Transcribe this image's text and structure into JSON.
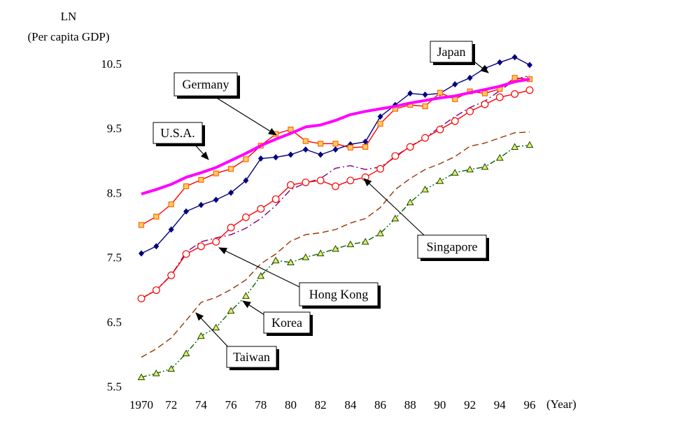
{
  "chart_data": {
    "type": "line",
    "ylabel_line1": "LN",
    "ylabel_line2": "(Per capita GDP)",
    "xlabel": "(Year)",
    "ylim": [
      5.5,
      11.0
    ],
    "yticks": [
      5.5,
      6.5,
      7.5,
      8.5,
      9.5,
      10.5
    ],
    "ytick_labels": [
      "5.5",
      "6.5",
      "7.5",
      "8.5",
      "9.5",
      "10.5"
    ],
    "xlim": [
      1970,
      1996
    ],
    "xticks": [
      1970,
      1972,
      1974,
      1976,
      1978,
      1980,
      1982,
      1984,
      1986,
      1988,
      1990,
      1992,
      1994,
      1996
    ],
    "xtick_labels": [
      "1970",
      "72",
      "74",
      "76",
      "78",
      "80",
      "82",
      "84",
      "86",
      "88",
      "90",
      "92",
      "94",
      "96"
    ],
    "x": [
      1970,
      1971,
      1972,
      1973,
      1974,
      1975,
      1976,
      1977,
      1978,
      1979,
      1980,
      1981,
      1982,
      1983,
      1984,
      1985,
      1986,
      1987,
      1988,
      1989,
      1990,
      1991,
      1992,
      1993,
      1994,
      1995,
      1996
    ],
    "grid": false,
    "legend": "callouts",
    "series": [
      {
        "key": "usa",
        "name": "U.S.A.",
        "color": "#ff00ff",
        "style": "thick-solid",
        "values": [
          8.48,
          8.55,
          8.63,
          8.74,
          8.81,
          8.89,
          9.0,
          9.11,
          9.23,
          9.33,
          9.42,
          9.52,
          9.55,
          9.62,
          9.71,
          9.76,
          9.8,
          9.84,
          9.89,
          9.93,
          9.97,
          10.0,
          10.05,
          10.1,
          10.15,
          10.22,
          10.26
        ]
      },
      {
        "key": "germany",
        "name": "Germany",
        "color": "#ff0000",
        "marker": "square",
        "marker_fill": "#ffcc66",
        "marker_stroke": "#ff6600",
        "values": [
          8.0,
          8.13,
          8.32,
          8.6,
          8.7,
          8.8,
          8.87,
          9.02,
          9.23,
          9.41,
          9.48,
          9.3,
          9.26,
          9.26,
          9.2,
          9.21,
          9.57,
          9.8,
          9.86,
          9.84,
          10.05,
          9.95,
          10.07,
          10.04,
          10.11,
          10.28,
          10.26
        ]
      },
      {
        "key": "japan",
        "name": "Japan",
        "color": "#000080",
        "marker": "diamond",
        "marker_fill": "#000080",
        "values": [
          7.56,
          7.67,
          7.93,
          8.21,
          8.31,
          8.39,
          8.5,
          8.69,
          9.03,
          9.05,
          9.09,
          9.17,
          9.09,
          9.17,
          9.25,
          9.29,
          9.68,
          9.86,
          10.04,
          10.02,
          10.04,
          10.18,
          10.28,
          10.43,
          10.52,
          10.6,
          10.48
        ]
      },
      {
        "key": "singapore",
        "name": "Singapore",
        "color": "#800080",
        "style": "dash-dot",
        "values": [
          6.86,
          7.0,
          7.22,
          7.58,
          7.74,
          7.8,
          7.85,
          7.95,
          8.1,
          8.3,
          8.55,
          8.65,
          8.72,
          8.88,
          8.92,
          8.86,
          8.9,
          9.05,
          9.22,
          9.35,
          9.52,
          9.68,
          9.82,
          9.92,
          10.08,
          10.25,
          10.32
        ]
      },
      {
        "key": "hongkong",
        "name": "Hong Kong",
        "color": "#ff0000",
        "marker": "circle",
        "marker_fill": "#ffffff",
        "marker_stroke": "#ff0000",
        "values": [
          6.86,
          6.99,
          7.22,
          7.55,
          7.67,
          7.74,
          7.96,
          8.12,
          8.25,
          8.4,
          8.62,
          8.66,
          8.69,
          8.6,
          8.69,
          8.74,
          8.87,
          9.07,
          9.21,
          9.35,
          9.48,
          9.61,
          9.76,
          9.87,
          9.98,
          10.03,
          10.09
        ]
      },
      {
        "key": "korea",
        "name": "Korea",
        "color": "#993300",
        "style": "dashed",
        "values": [
          5.95,
          6.08,
          6.25,
          6.52,
          6.8,
          6.88,
          7.0,
          7.15,
          7.4,
          7.55,
          7.75,
          7.85,
          7.88,
          7.93,
          8.03,
          8.1,
          8.27,
          8.55,
          8.72,
          8.86,
          8.95,
          9.06,
          9.22,
          9.27,
          9.35,
          9.43,
          9.44
        ]
      },
      {
        "key": "taiwan",
        "name": "Taiwan",
        "color": "#006600",
        "style": "dash-dot-dot",
        "marker": "triangle",
        "marker_fill": "#ccff66",
        "marker_stroke": "#333300",
        "values": [
          5.64,
          5.7,
          5.77,
          6.01,
          6.28,
          6.41,
          6.67,
          6.9,
          7.21,
          7.45,
          7.42,
          7.5,
          7.56,
          7.63,
          7.7,
          7.74,
          7.87,
          8.1,
          8.35,
          8.55,
          8.68,
          8.81,
          8.86,
          8.9,
          9.04,
          9.21,
          9.24
        ]
      }
    ],
    "annotations": [
      {
        "key": "japan",
        "text": "Japan"
      },
      {
        "key": "germany",
        "text": "Germany"
      },
      {
        "key": "usa",
        "text": "U.S.A."
      },
      {
        "key": "singapore",
        "text": "Singapore"
      },
      {
        "key": "hongkong",
        "text": "Hong Kong"
      },
      {
        "key": "korea",
        "text": "Korea"
      },
      {
        "key": "taiwan",
        "text": "Taiwan"
      }
    ]
  }
}
